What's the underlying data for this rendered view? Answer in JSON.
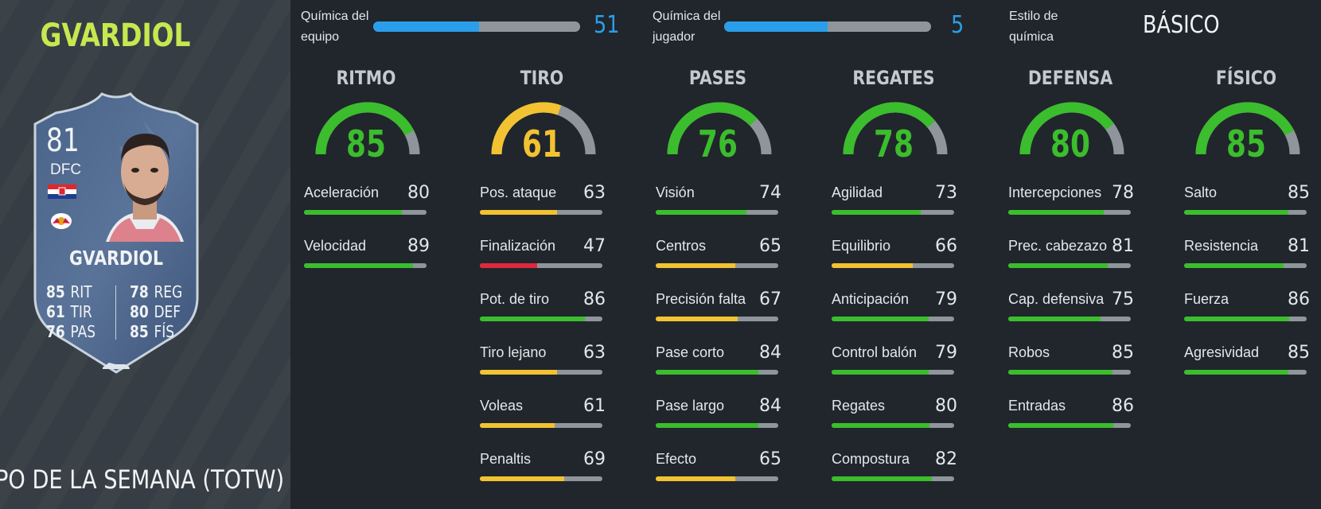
{
  "player": {
    "name": "GVARDIOL",
    "card_rating": "81",
    "card_position": "DFC",
    "card_name": "GVARDIOL",
    "card_stats": [
      {
        "value": "85",
        "label": "RIT"
      },
      {
        "value": "61",
        "label": "TIR"
      },
      {
        "value": "76",
        "label": "PAS"
      },
      {
        "value": "78",
        "label": "REG"
      },
      {
        "value": "80",
        "label": "DEF"
      },
      {
        "value": "85",
        "label": "FÍS"
      }
    ],
    "card_type": "IPO DE LA SEMANA (TOTW)"
  },
  "chemistry": {
    "team_label_1": "Química del",
    "team_label_2": "equipo",
    "team_value": "51",
    "team_fraction": 0.51,
    "player_label_1": "Química del",
    "player_label_2": "jugador",
    "player_value": "5",
    "player_fraction": 0.5,
    "style_label_1": "Estilo de",
    "style_label_2": "química",
    "style_value": "BÁSICO"
  },
  "colors": {
    "green": "#3bbd2d",
    "yellow": "#f2c232",
    "red": "#e0283d",
    "blue": "#2a9eea",
    "track": "#8e959b"
  },
  "categories": [
    {
      "title": "RITMO",
      "value": "85",
      "stats": [
        {
          "label": "Aceleración",
          "value": "80"
        },
        {
          "label": "Velocidad",
          "value": "89"
        }
      ]
    },
    {
      "title": "TIRO",
      "value": "61",
      "stats": [
        {
          "label": "Pos. ataque",
          "value": "63"
        },
        {
          "label": "Finalización",
          "value": "47"
        },
        {
          "label": "Pot. de tiro",
          "value": "86"
        },
        {
          "label": "Tiro lejano",
          "value": "63"
        },
        {
          "label": "Voleas",
          "value": "61"
        },
        {
          "label": "Penaltis",
          "value": "69"
        }
      ]
    },
    {
      "title": "PASES",
      "value": "76",
      "stats": [
        {
          "label": "Visión",
          "value": "74"
        },
        {
          "label": "Centros",
          "value": "65"
        },
        {
          "label": "Precisión falta",
          "value": "67"
        },
        {
          "label": "Pase corto",
          "value": "84"
        },
        {
          "label": "Pase largo",
          "value": "84"
        },
        {
          "label": "Efecto",
          "value": "65"
        }
      ]
    },
    {
      "title": "REGATES",
      "value": "78",
      "stats": [
        {
          "label": "Agilidad",
          "value": "73"
        },
        {
          "label": "Equilibrio",
          "value": "66"
        },
        {
          "label": "Anticipación",
          "value": "79"
        },
        {
          "label": "Control balón",
          "value": "79"
        },
        {
          "label": "Regates",
          "value": "80"
        },
        {
          "label": "Compostura",
          "value": "82"
        }
      ]
    },
    {
      "title": "DEFENSA",
      "value": "80",
      "stats": [
        {
          "label": "Intercepciones",
          "value": "78"
        },
        {
          "label": "Prec. cabezazo",
          "value": "81"
        },
        {
          "label": "Cap. defensiva",
          "value": "75"
        },
        {
          "label": "Robos",
          "value": "85"
        },
        {
          "label": "Entradas",
          "value": "86"
        }
      ]
    },
    {
      "title": "FÍSICO",
      "value": "85",
      "stats": [
        {
          "label": "Salto",
          "value": "85"
        },
        {
          "label": "Resistencia",
          "value": "81"
        },
        {
          "label": "Fuerza",
          "value": "86"
        },
        {
          "label": "Agresividad",
          "value": "85"
        }
      ]
    }
  ]
}
